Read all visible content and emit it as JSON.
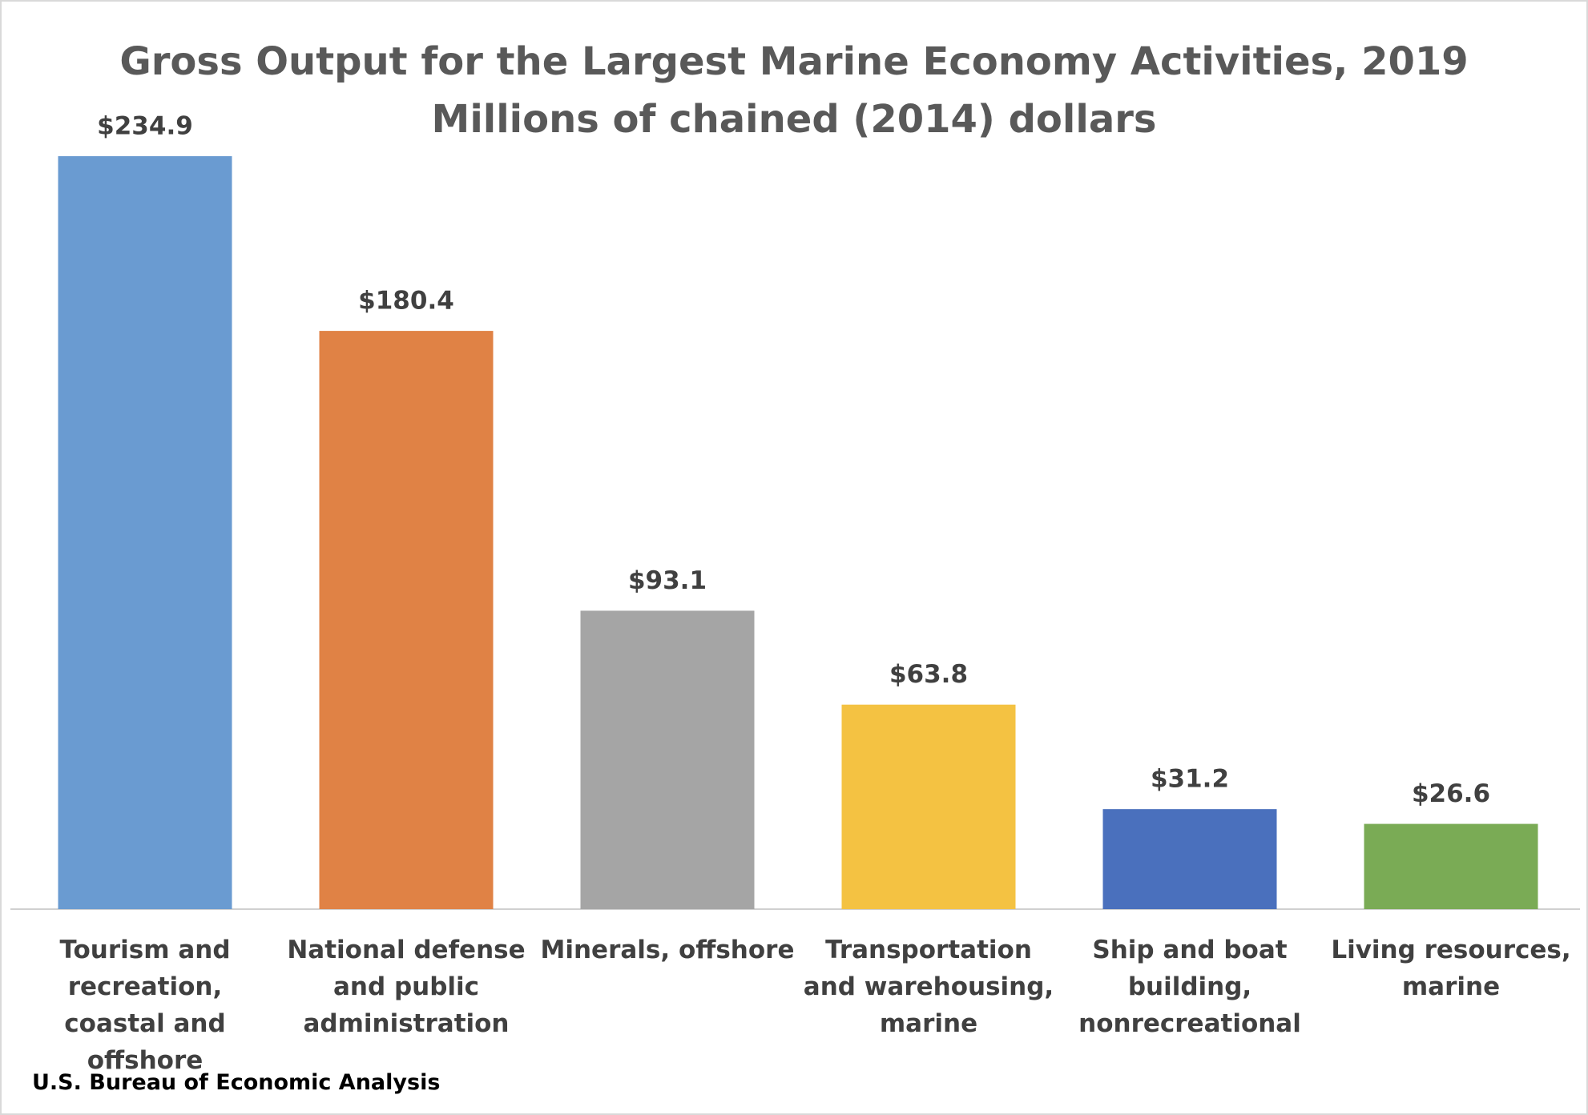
{
  "chart_data": {
    "type": "bar",
    "title": "Gross Output for the Largest Marine Economy Activities, 2019",
    "subtitle": "Millions of chained (2014) dollars",
    "categories": [
      "Tourism and recreation, coastal and offshore",
      "National defense and public administration",
      "Minerals, offshore",
      "Transportation and warehousing, marine",
      "Ship and boat building, nonrecreational",
      "Living resources, marine"
    ],
    "values": [
      234.9,
      180.4,
      93.1,
      63.8,
      31.2,
      26.6
    ],
    "value_labels": [
      "$234.9",
      "$180.4",
      "$93.1",
      "$63.8",
      "$31.2",
      "$26.6"
    ],
    "colors": [
      "#6a9bd1",
      "#e08245",
      "#a5a5a5",
      "#f4c242",
      "#4a70bd",
      "#7aab55"
    ],
    "source": "U.S. Bureau of Economic Analysis"
  }
}
